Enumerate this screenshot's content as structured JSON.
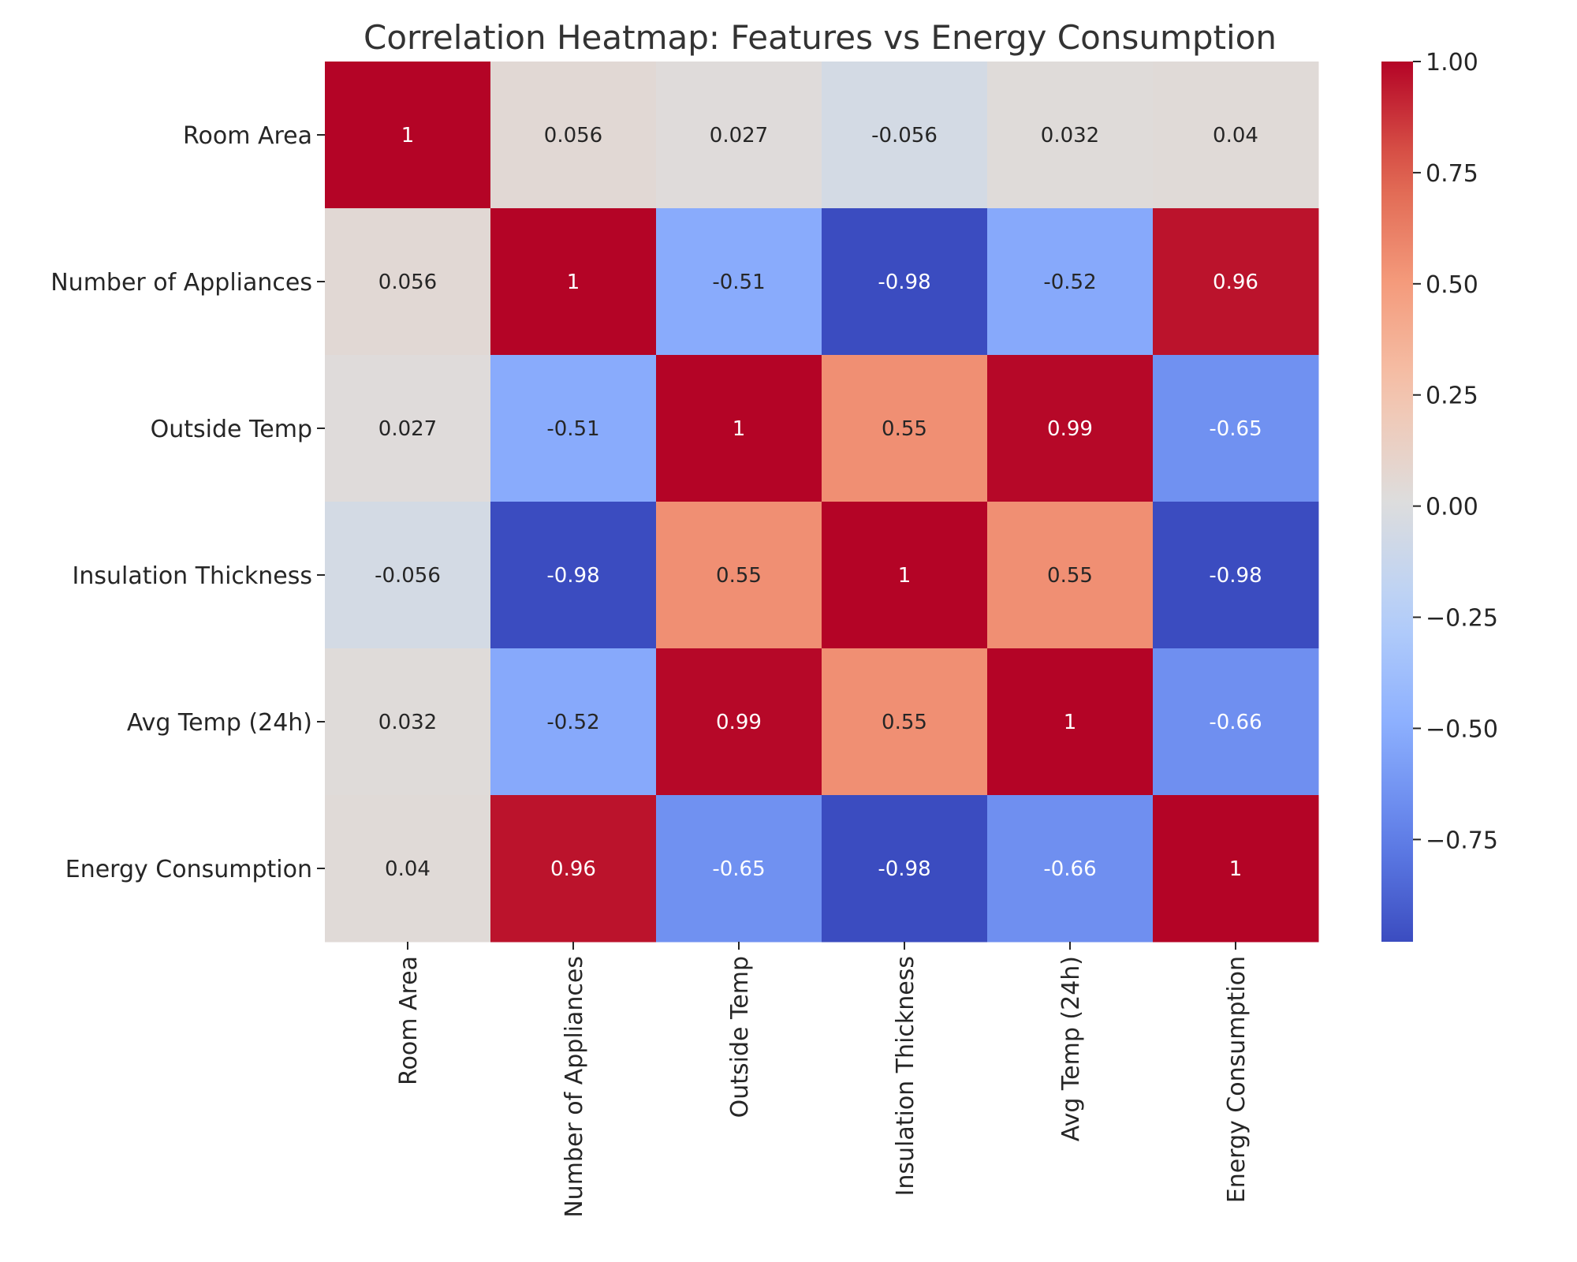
{
  "chart_data": {
    "type": "heatmap",
    "title": "Correlation Heatmap: Features vs Energy Consumption",
    "xlabel": "",
    "ylabel": "",
    "row_labels": [
      "Room Area",
      "Number of Appliances",
      "Outside Temp",
      "Insulation Thickness",
      "Avg Temp (24h)",
      "Energy Consumption"
    ],
    "col_labels": [
      "Room Area",
      "Number of Appliances",
      "Outside Temp",
      "Insulation Thickness",
      "Avg Temp (24h)",
      "Energy Consumption"
    ],
    "values": [
      [
        1,
        0.056,
        0.027,
        -0.056,
        0.032,
        0.04
      ],
      [
        0.056,
        1,
        -0.51,
        -0.98,
        -0.52,
        0.96
      ],
      [
        0.027,
        -0.51,
        1,
        0.55,
        0.99,
        -0.65
      ],
      [
        -0.056,
        -0.98,
        0.55,
        1,
        0.55,
        -0.98
      ],
      [
        0.032,
        -0.52,
        0.99,
        0.55,
        1,
        -0.66
      ],
      [
        0.04,
        0.96,
        -0.65,
        -0.98,
        -0.66,
        1
      ]
    ],
    "cell_text": [
      [
        "1",
        "0.056",
        "0.027",
        "-0.056",
        "0.032",
        "0.04"
      ],
      [
        "0.056",
        "1",
        "-0.51",
        "-0.98",
        "-0.52",
        "0.96"
      ],
      [
        "0.027",
        "-0.51",
        "1",
        "0.55",
        "0.99",
        "-0.65"
      ],
      [
        "-0.056",
        "-0.98",
        "0.55",
        "1",
        "0.55",
        "-0.98"
      ],
      [
        "0.032",
        "-0.52",
        "0.99",
        "0.55",
        "1",
        "-0.66"
      ],
      [
        "0.04",
        "0.96",
        "-0.65",
        "-0.98",
        "-0.66",
        "1"
      ]
    ],
    "colormap": "coolwarm",
    "colorbar": {
      "min": -0.98,
      "max": 1.0,
      "ticks": [
        1.0,
        0.75,
        0.5,
        0.25,
        0.0,
        -0.25,
        -0.5,
        -0.75
      ],
      "tick_labels": [
        "1.00",
        "0.75",
        "0.50",
        "0.25",
        "0.00",
        "−0.25",
        "−0.50",
        "−0.75"
      ]
    },
    "grid": false,
    "colorbar_placement": "right"
  }
}
